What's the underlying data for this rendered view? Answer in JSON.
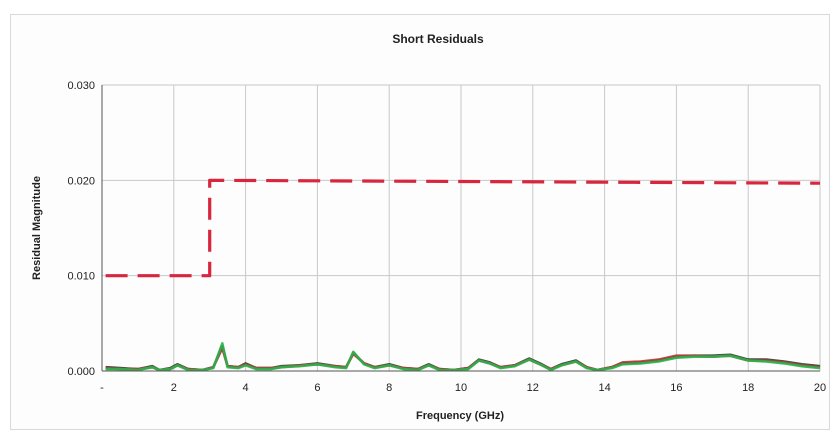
{
  "colors": {
    "limit": "#d7263d",
    "series_dark": "#2f3b2f",
    "series_red": "#b33a3a",
    "series_green": "#2bb34a",
    "grid": "#c8c8c8",
    "axis": "#555555"
  },
  "chart_data": {
    "type": "line",
    "title": "Short Residuals",
    "xlabel": "Frequency (GHz)",
    "ylabel": "Residual Magnitude",
    "xlim": [
      0,
      20
    ],
    "ylim": [
      0,
      0.03
    ],
    "grid": true,
    "x_ticks": [
      0,
      2,
      4,
      6,
      8,
      10,
      12,
      14,
      16,
      18,
      20
    ],
    "x_tick_labels": [
      "-",
      "2",
      "4",
      "6",
      "8",
      "10",
      "12",
      "14",
      "16",
      "18",
      "20"
    ],
    "y_ticks": [
      0,
      0.01,
      0.02,
      0.03
    ],
    "y_tick_labels": [
      "0.000",
      "0.010",
      "0.020",
      "0.030"
    ],
    "series": [
      {
        "style": "dashed",
        "color": "limit",
        "points": [
          [
            0.1,
            0.01
          ],
          [
            3.0,
            0.01
          ],
          [
            3.0,
            0.02
          ],
          [
            20,
            0.0197
          ]
        ]
      },
      {
        "style": "solid",
        "color": "series_dark",
        "points": [
          [
            0.1,
            0.0004
          ],
          [
            0.5,
            0.0003
          ],
          [
            1.0,
            0.0002
          ],
          [
            1.4,
            0.0005
          ],
          [
            1.6,
            0.0001
          ],
          [
            1.9,
            0.0003
          ],
          [
            2.1,
            0.0007
          ],
          [
            2.4,
            0.0002
          ],
          [
            2.8,
            0.0001
          ],
          [
            3.1,
            0.0004
          ],
          [
            3.35,
            0.0026
          ],
          [
            3.5,
            0.0005
          ],
          [
            3.8,
            0.0004
          ],
          [
            4.0,
            0.0008
          ],
          [
            4.3,
            0.0003
          ],
          [
            4.7,
            0.0003
          ],
          [
            5.0,
            0.0005
          ],
          [
            5.5,
            0.0006
          ],
          [
            6.0,
            0.0008
          ],
          [
            6.5,
            0.0005
          ],
          [
            6.8,
            0.0004
          ],
          [
            7.0,
            0.0019
          ],
          [
            7.3,
            0.0008
          ],
          [
            7.6,
            0.0004
          ],
          [
            8.0,
            0.0007
          ],
          [
            8.4,
            0.0003
          ],
          [
            8.8,
            0.0002
          ],
          [
            9.1,
            0.0007
          ],
          [
            9.4,
            0.0002
          ],
          [
            9.8,
            0.0001
          ],
          [
            10.2,
            0.0003
          ],
          [
            10.5,
            0.0012
          ],
          [
            10.8,
            0.0009
          ],
          [
            11.1,
            0.0004
          ],
          [
            11.5,
            0.0006
          ],
          [
            11.9,
            0.0013
          ],
          [
            12.2,
            0.0008
          ],
          [
            12.5,
            0.0002
          ],
          [
            12.8,
            0.0007
          ],
          [
            13.2,
            0.0011
          ],
          [
            13.5,
            0.0004
          ],
          [
            13.8,
            0.0001
          ],
          [
            14.2,
            0.0004
          ],
          [
            14.5,
            0.0008
          ],
          [
            15.0,
            0.0009
          ],
          [
            15.5,
            0.0011
          ],
          [
            16.0,
            0.0015
          ],
          [
            16.5,
            0.0016
          ],
          [
            17.0,
            0.0016
          ],
          [
            17.5,
            0.0017
          ],
          [
            18.0,
            0.0012
          ],
          [
            18.5,
            0.0012
          ],
          [
            19.0,
            0.001
          ],
          [
            19.5,
            0.0007
          ],
          [
            20.0,
            0.0005
          ]
        ]
      },
      {
        "style": "solid",
        "color": "series_red",
        "points": [
          [
            0.1,
            0.0003
          ],
          [
            0.5,
            0.0002
          ],
          [
            1.0,
            0.0002
          ],
          [
            1.4,
            0.0004
          ],
          [
            1.6,
            0.0001
          ],
          [
            1.9,
            0.0002
          ],
          [
            2.1,
            0.0006
          ],
          [
            2.4,
            0.0002
          ],
          [
            2.8,
            0.0001
          ],
          [
            3.1,
            0.0004
          ],
          [
            3.35,
            0.0024
          ],
          [
            3.5,
            0.0005
          ],
          [
            3.8,
            0.0004
          ],
          [
            4.0,
            0.0007
          ],
          [
            4.3,
            0.0003
          ],
          [
            4.7,
            0.0003
          ],
          [
            5.0,
            0.0004
          ],
          [
            5.5,
            0.0006
          ],
          [
            6.0,
            0.0007
          ],
          [
            6.5,
            0.0005
          ],
          [
            6.8,
            0.0004
          ],
          [
            7.0,
            0.0018
          ],
          [
            7.3,
            0.0008
          ],
          [
            7.6,
            0.0004
          ],
          [
            8.0,
            0.0006
          ],
          [
            8.4,
            0.0003
          ],
          [
            8.8,
            0.0002
          ],
          [
            9.1,
            0.0006
          ],
          [
            9.4,
            0.0002
          ],
          [
            9.8,
            0.0001
          ],
          [
            10.2,
            0.0003
          ],
          [
            10.5,
            0.0011
          ],
          [
            10.8,
            0.0008
          ],
          [
            11.1,
            0.0004
          ],
          [
            11.5,
            0.0006
          ],
          [
            11.9,
            0.0012
          ],
          [
            12.2,
            0.0007
          ],
          [
            12.5,
            0.0002
          ],
          [
            12.8,
            0.0006
          ],
          [
            13.2,
            0.001
          ],
          [
            13.5,
            0.0004
          ],
          [
            13.8,
            0.0001
          ],
          [
            14.2,
            0.0004
          ],
          [
            14.5,
            0.0009
          ],
          [
            15.0,
            0.001
          ],
          [
            15.5,
            0.0012
          ],
          [
            16.0,
            0.0016
          ],
          [
            16.5,
            0.0016
          ],
          [
            17.0,
            0.0015
          ],
          [
            17.5,
            0.0016
          ],
          [
            18.0,
            0.0011
          ],
          [
            18.5,
            0.0011
          ],
          [
            19.0,
            0.0009
          ],
          [
            19.5,
            0.0006
          ],
          [
            20.0,
            0.0004
          ]
        ]
      },
      {
        "style": "solid",
        "color": "series_green",
        "points": [
          [
            0.1,
            0.0002
          ],
          [
            0.5,
            0.0002
          ],
          [
            1.0,
            0.0001
          ],
          [
            1.4,
            0.0004
          ],
          [
            1.6,
            0.0001
          ],
          [
            1.9,
            0.0002
          ],
          [
            2.1,
            0.0006
          ],
          [
            2.4,
            0.0001
          ],
          [
            2.8,
            0.0001
          ],
          [
            3.1,
            0.0003
          ],
          [
            3.35,
            0.0029
          ],
          [
            3.5,
            0.0004
          ],
          [
            3.8,
            0.0003
          ],
          [
            4.0,
            0.0006
          ],
          [
            4.3,
            0.0002
          ],
          [
            4.7,
            0.0002
          ],
          [
            5.0,
            0.0004
          ],
          [
            5.5,
            0.0005
          ],
          [
            6.0,
            0.0007
          ],
          [
            6.5,
            0.0004
          ],
          [
            6.8,
            0.0003
          ],
          [
            7.0,
            0.002
          ],
          [
            7.3,
            0.0007
          ],
          [
            7.6,
            0.0003
          ],
          [
            8.0,
            0.0006
          ],
          [
            8.4,
            0.0002
          ],
          [
            8.8,
            0.0001
          ],
          [
            9.1,
            0.0006
          ],
          [
            9.4,
            0.0001
          ],
          [
            9.8,
            0.0001
          ],
          [
            10.2,
            0.0002
          ],
          [
            10.5,
            0.0011
          ],
          [
            10.8,
            0.0008
          ],
          [
            11.1,
            0.0003
          ],
          [
            11.5,
            0.0005
          ],
          [
            11.9,
            0.0012
          ],
          [
            12.2,
            0.0007
          ],
          [
            12.5,
            0.0001
          ],
          [
            12.8,
            0.0006
          ],
          [
            13.2,
            0.001
          ],
          [
            13.5,
            0.0003
          ],
          [
            13.8,
            0.0001
          ],
          [
            14.2,
            0.0003
          ],
          [
            14.5,
            0.0007
          ],
          [
            15.0,
            0.0008
          ],
          [
            15.5,
            0.001
          ],
          [
            16.0,
            0.0014
          ],
          [
            16.5,
            0.0015
          ],
          [
            17.0,
            0.0015
          ],
          [
            17.5,
            0.0016
          ],
          [
            18.0,
            0.0011
          ],
          [
            18.5,
            0.001
          ],
          [
            19.0,
            0.0008
          ],
          [
            19.5,
            0.0005
          ],
          [
            20.0,
            0.0003
          ]
        ]
      }
    ]
  }
}
